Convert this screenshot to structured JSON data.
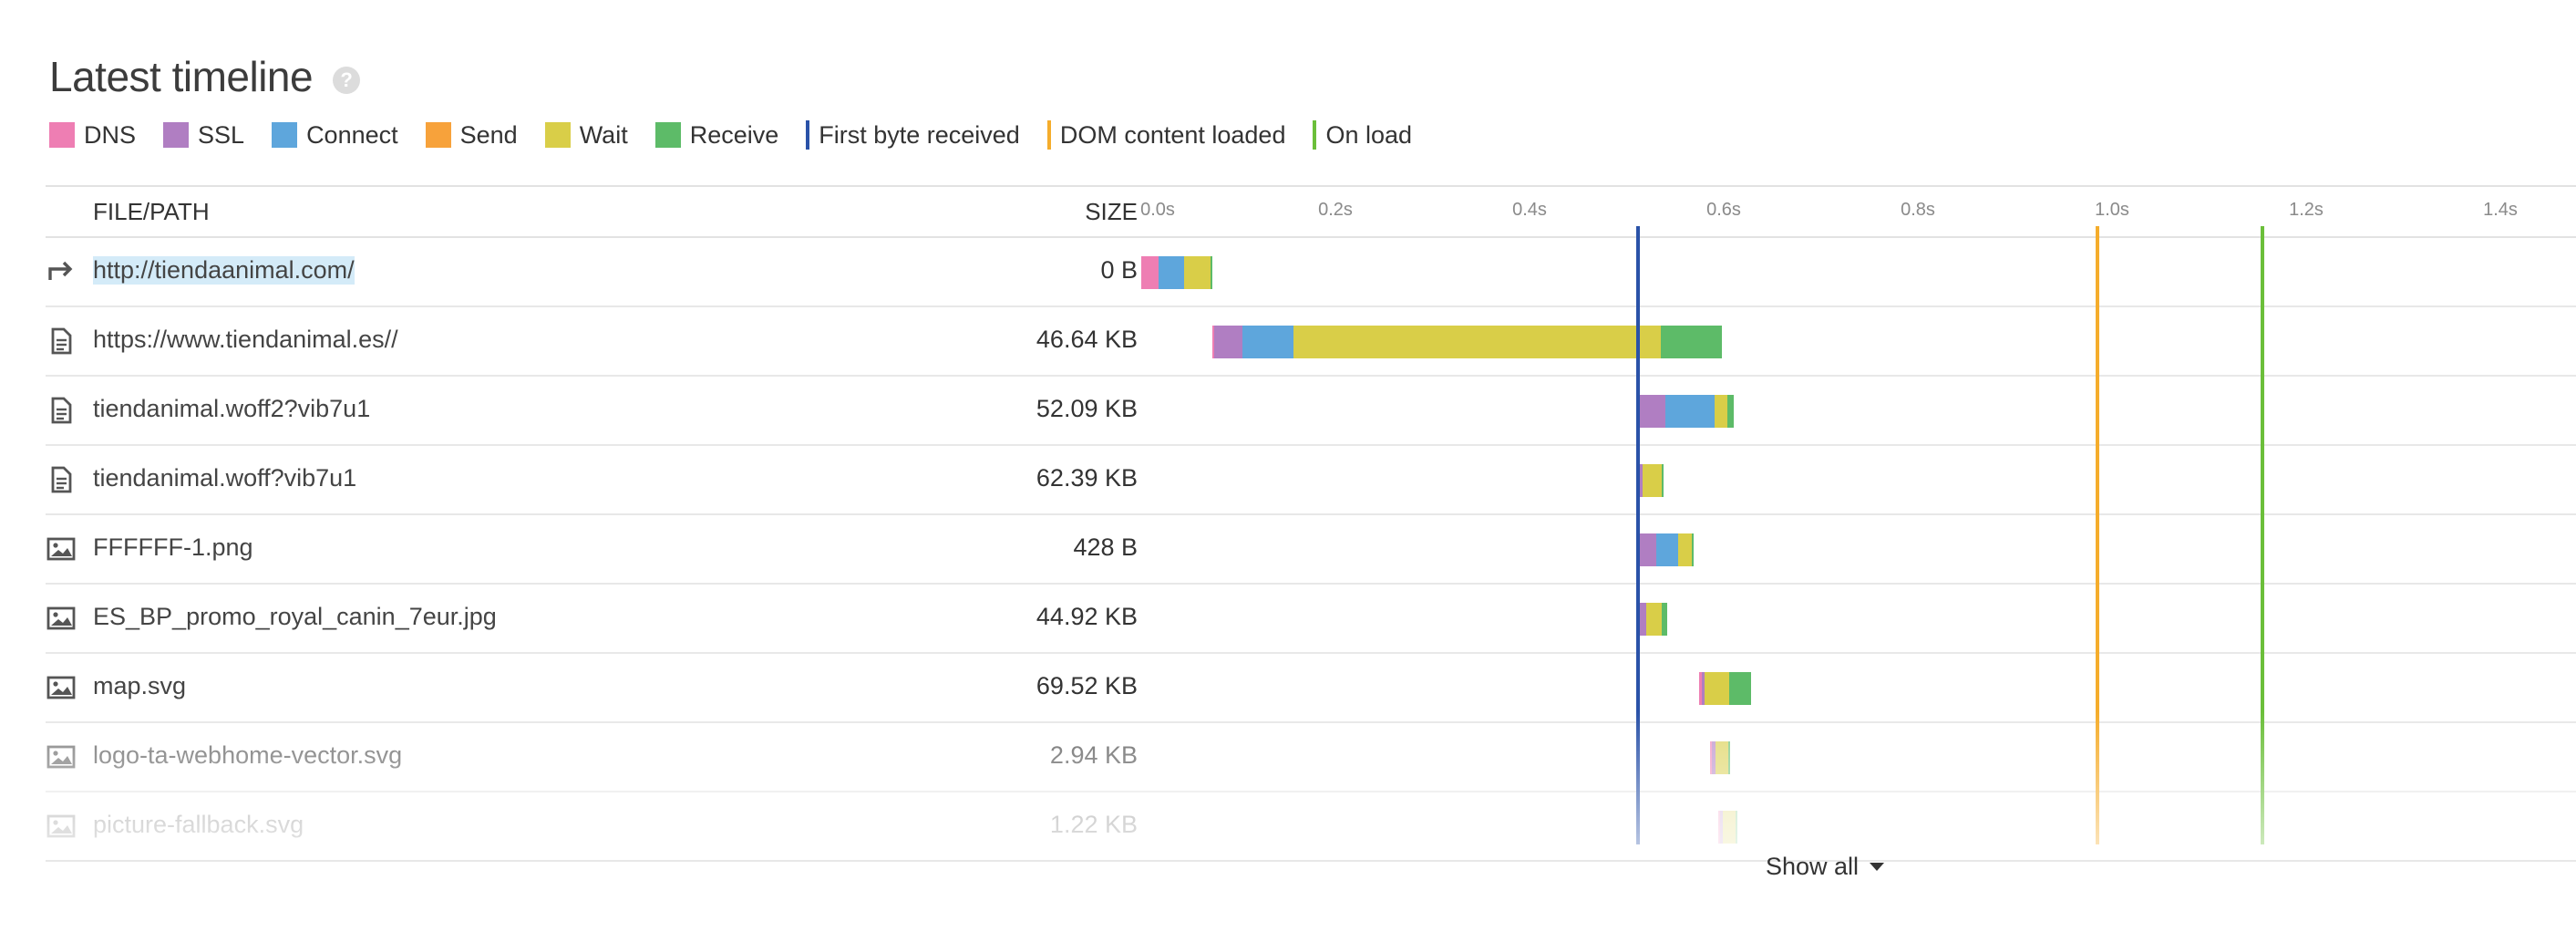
{
  "title": "Latest timeline",
  "help_icon": "question-circle-icon",
  "legend": [
    {
      "label": "DNS",
      "type": "swatch",
      "color": "#ee7eb3"
    },
    {
      "label": "SSL",
      "type": "swatch",
      "color": "#b07ec2"
    },
    {
      "label": "Connect",
      "type": "swatch",
      "color": "#5ea6dc"
    },
    {
      "label": "Send",
      "type": "swatch",
      "color": "#f7a23b"
    },
    {
      "label": "Wait",
      "type": "swatch",
      "color": "#d9ce48"
    },
    {
      "label": "Receive",
      "type": "swatch",
      "color": "#5dbb68"
    },
    {
      "label": "First byte received",
      "type": "line",
      "color": "#2a52a8"
    },
    {
      "label": "DOM content loaded",
      "type": "line",
      "color": "#f5ad2c"
    },
    {
      "label": "On load",
      "type": "line",
      "color": "#6bbf3a"
    }
  ],
  "table": {
    "col_file": "FILE/PATH",
    "col_size": "SIZE",
    "ticks": [
      "0.0s",
      "0.2s",
      "0.4s",
      "0.6s",
      "0.8s",
      "1.0s",
      "1.2s",
      "1.4s"
    ],
    "tick_values": [
      0.0,
      0.2,
      0.4,
      0.6,
      0.8,
      1.0,
      1.2,
      1.4
    ],
    "rows": [
      {
        "icon": "redirect-icon",
        "path": "http://tiendaanimal.com/",
        "size": "0 B",
        "selected": true,
        "segments": [
          [
            "dns",
            0.0,
            0.018
          ],
          [
            "connect",
            0.018,
            0.044
          ],
          [
            "wait",
            0.044,
            0.071
          ],
          [
            "receive",
            0.071,
            0.073
          ]
        ]
      },
      {
        "icon": "document-icon",
        "path": "https://www.tiendanimal.es//",
        "size": "46.64 KB",
        "segments": [
          [
            "dns",
            0.073,
            0.075
          ],
          [
            "ssl",
            0.075,
            0.104
          ],
          [
            "connect",
            0.104,
            0.157
          ],
          [
            "wait",
            0.157,
            0.535
          ],
          [
            "receive",
            0.535,
            0.598
          ]
        ]
      },
      {
        "icon": "document-icon",
        "path": "tiendanimal.woff2?vib7u1",
        "size": "52.09 KB",
        "segments": [
          [
            "dns",
            0.511,
            0.514
          ],
          [
            "ssl",
            0.514,
            0.54
          ],
          [
            "connect",
            0.54,
            0.591
          ],
          [
            "wait",
            0.591,
            0.604
          ],
          [
            "receive",
            0.604,
            0.61
          ]
        ]
      },
      {
        "icon": "document-icon",
        "path": "tiendanimal.woff?vib7u1",
        "size": "62.39 KB",
        "segments": [
          [
            "dns",
            0.511,
            0.514
          ],
          [
            "ssl",
            0.514,
            0.516
          ],
          [
            "wait",
            0.516,
            0.536
          ],
          [
            "receive",
            0.536,
            0.538
          ]
        ]
      },
      {
        "icon": "image-icon",
        "path": "FFFFFF-1.png",
        "size": "428 B",
        "segments": [
          [
            "dns",
            0.511,
            0.514
          ],
          [
            "ssl",
            0.514,
            0.531
          ],
          [
            "connect",
            0.531,
            0.553
          ],
          [
            "wait",
            0.553,
            0.567
          ],
          [
            "receive",
            0.567,
            0.569
          ]
        ]
      },
      {
        "icon": "image-icon",
        "path": "ES_BP_promo_royal_canin_7eur.jpg",
        "size": "44.92 KB",
        "segments": [
          [
            "dns",
            0.511,
            0.514
          ],
          [
            "ssl",
            0.514,
            0.52
          ],
          [
            "wait",
            0.52,
            0.536
          ],
          [
            "receive",
            0.536,
            0.542
          ]
        ]
      },
      {
        "icon": "image-icon",
        "path": "map.svg",
        "size": "69.52 KB",
        "segments": [
          [
            "dns",
            0.575,
            0.577
          ],
          [
            "ssl",
            0.577,
            0.58
          ],
          [
            "wait",
            0.58,
            0.606
          ],
          [
            "receive",
            0.606,
            0.628
          ]
        ]
      },
      {
        "icon": "image-icon",
        "path": "logo-ta-webhome-vector.svg",
        "size": "2.94 KB",
        "segments": [
          [
            "dns",
            0.586,
            0.588
          ],
          [
            "ssl",
            0.588,
            0.592
          ],
          [
            "wait",
            0.592,
            0.605
          ],
          [
            "receive",
            0.605,
            0.607
          ]
        ]
      },
      {
        "icon": "image-icon",
        "path": "picture-fallback.svg",
        "size": "1.22 KB",
        "segments": [
          [
            "dns",
            0.594,
            0.596
          ],
          [
            "ssl",
            0.596,
            0.599
          ],
          [
            "wait",
            0.599,
            0.612
          ],
          [
            "receive",
            0.612,
            0.614
          ]
        ]
      }
    ]
  },
  "markers": {
    "first_byte_s": 0.512,
    "dom_content_loaded_s": 0.985,
    "on_load_s": 1.155
  },
  "show_all_label": "Show all"
}
